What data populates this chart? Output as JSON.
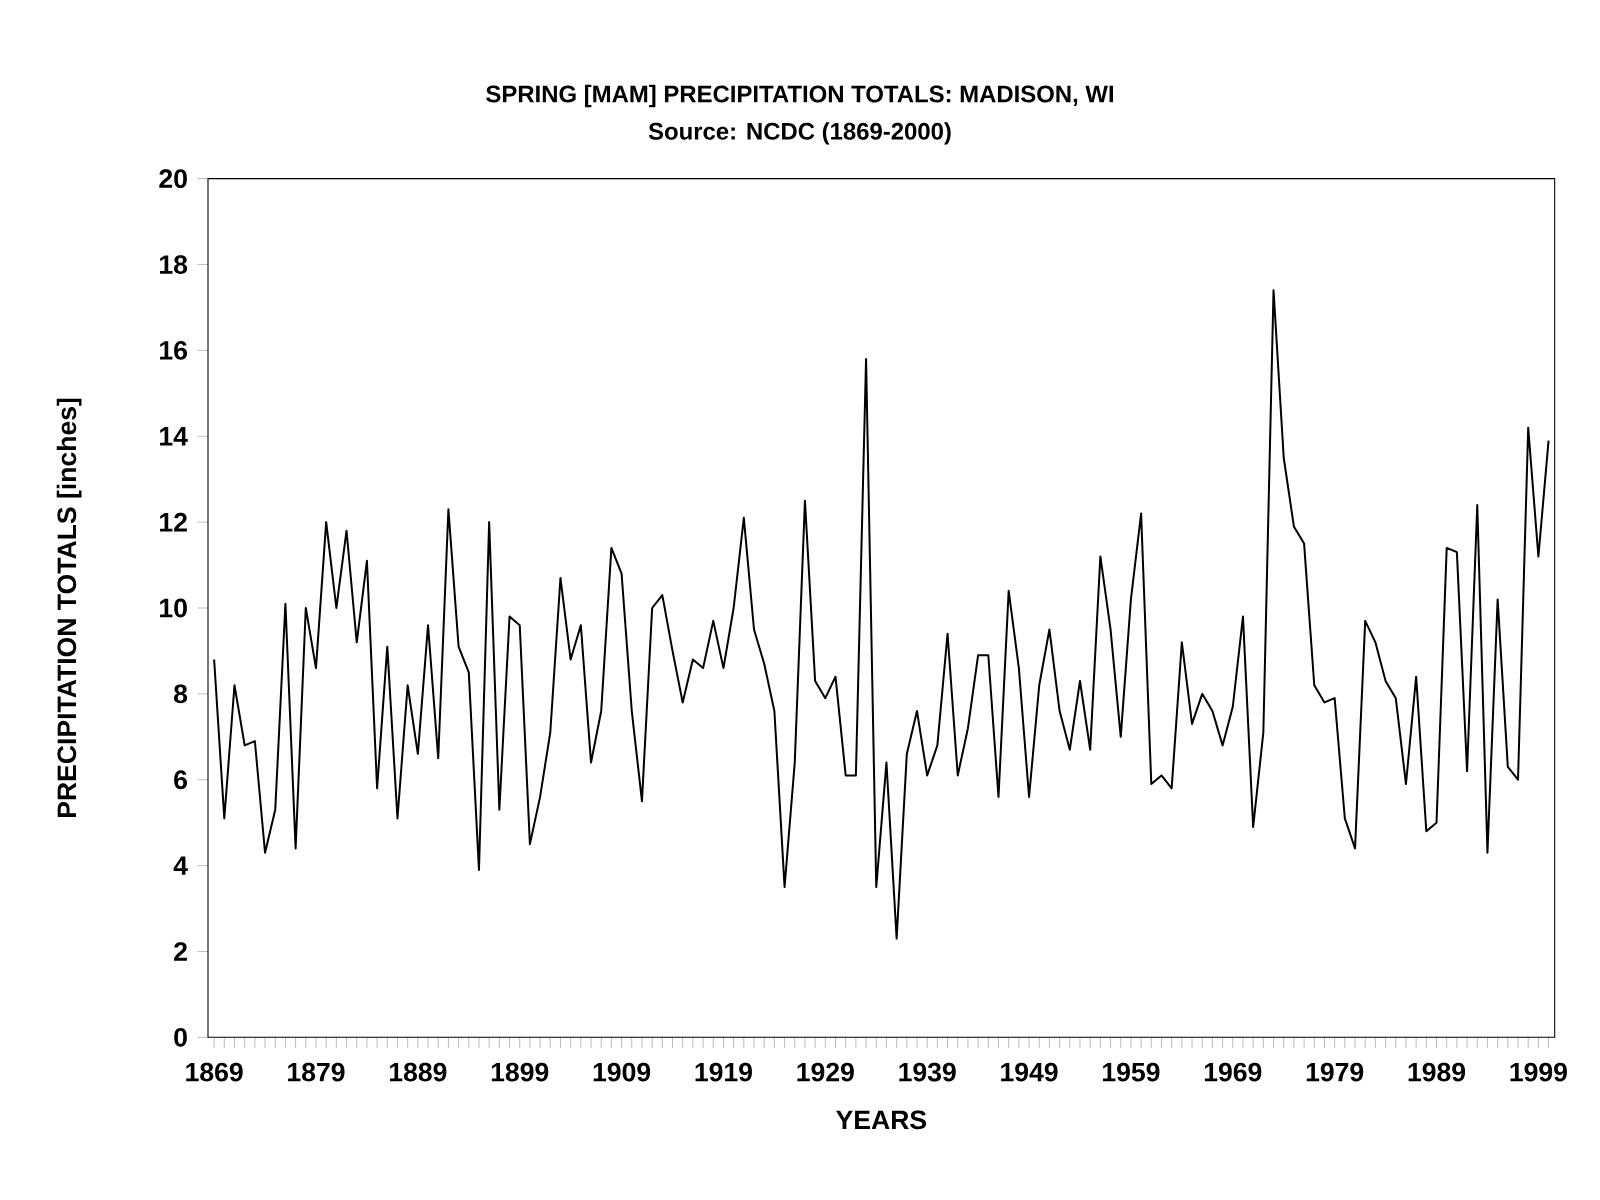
{
  "chart_data": {
    "type": "line",
    "title": "SPRING [MAM] PRECIPITATION TOTALS: MADISON, WI",
    "subtitle": "Source: NCDC (1869-2000)",
    "xlabel": "YEARS",
    "ylabel": "PRECIPITATION TOTALS [inches]",
    "x": [
      1869,
      1870,
      1871,
      1872,
      1873,
      1874,
      1875,
      1876,
      1877,
      1878,
      1879,
      1880,
      1881,
      1882,
      1883,
      1884,
      1885,
      1886,
      1887,
      1888,
      1889,
      1890,
      1891,
      1892,
      1893,
      1894,
      1895,
      1896,
      1897,
      1898,
      1899,
      1900,
      1901,
      1902,
      1903,
      1904,
      1905,
      1906,
      1907,
      1908,
      1909,
      1910,
      1911,
      1912,
      1913,
      1914,
      1915,
      1916,
      1917,
      1918,
      1919,
      1920,
      1921,
      1922,
      1923,
      1924,
      1925,
      1926,
      1927,
      1928,
      1929,
      1930,
      1931,
      1932,
      1933,
      1934,
      1935,
      1936,
      1937,
      1938,
      1939,
      1940,
      1941,
      1942,
      1943,
      1944,
      1945,
      1946,
      1947,
      1948,
      1949,
      1950,
      1951,
      1952,
      1953,
      1954,
      1955,
      1956,
      1957,
      1958,
      1959,
      1960,
      1961,
      1962,
      1963,
      1964,
      1965,
      1966,
      1967,
      1968,
      1969,
      1970,
      1971,
      1972,
      1973,
      1974,
      1975,
      1976,
      1977,
      1978,
      1979,
      1980,
      1981,
      1982,
      1983,
      1984,
      1985,
      1986,
      1987,
      1988,
      1989,
      1990,
      1991,
      1992,
      1993,
      1994,
      1995,
      1996,
      1997,
      1998,
      1999,
      2000
    ],
    "series": [
      {
        "color": "#000000",
        "values": [
          8.8,
          5.1,
          8.2,
          6.8,
          6.9,
          4.3,
          5.3,
          10.1,
          4.4,
          10.0,
          8.6,
          12.0,
          10.0,
          11.8,
          9.2,
          11.1,
          5.8,
          9.1,
          5.1,
          8.2,
          6.6,
          9.6,
          6.5,
          12.3,
          9.1,
          8.5,
          3.9,
          12.0,
          5.3,
          9.8,
          9.6,
          4.5,
          5.6,
          7.1,
          10.7,
          8.8,
          9.6,
          6.4,
          7.6,
          11.4,
          10.8,
          7.6,
          5.5,
          10.0,
          10.3,
          9.0,
          7.8,
          8.8,
          8.6,
          9.7,
          8.6,
          10.0,
          12.1,
          9.5,
          8.7,
          7.6,
          3.5,
          6.4,
          12.5,
          8.3,
          7.9,
          8.4,
          6.1,
          6.1,
          15.8,
          3.5,
          6.4,
          2.3,
          6.6,
          7.6,
          6.1,
          6.8,
          9.4,
          6.1,
          7.2,
          8.9,
          8.9,
          5.6,
          10.4,
          8.6,
          5.6,
          8.2,
          9.5,
          7.6,
          6.7,
          8.3,
          6.7,
          11.2,
          9.5,
          7.0,
          10.2,
          12.2,
          5.9,
          6.1,
          5.8,
          9.2,
          7.3,
          8.0,
          7.6,
          6.8,
          7.7,
          9.8,
          4.9,
          7.1,
          17.4,
          13.5,
          11.9,
          11.5,
          8.2,
          7.8,
          7.9,
          5.1,
          4.4,
          9.7,
          9.2,
          8.3,
          7.9,
          5.9,
          8.4,
          4.8,
          5.0,
          11.4,
          11.3,
          6.2,
          12.4,
          4.3,
          10.2,
          6.3,
          6.0,
          14.2,
          11.2,
          13.9
        ]
      }
    ],
    "xlim": [
      1868.4,
      2000.6
    ],
    "ylim": [
      0,
      20
    ],
    "xticks": [
      1869,
      {
        "value": 1870,
        "label": null
      },
      {
        "value": 1871,
        "label": null
      },
      {
        "value": 1872,
        "label": null
      },
      {
        "value": 1873,
        "label": null
      },
      {
        "value": 1874,
        "label": null
      },
      {
        "value": 1875,
        "label": null
      },
      {
        "value": 1876,
        "label": null
      },
      {
        "value": 1877,
        "label": null
      },
      {
        "value": 1878,
        "label": null
      },
      1879,
      {
        "value": 1880,
        "label": null
      },
      {
        "value": 1881,
        "label": null
      },
      {
        "value": 1882,
        "label": null
      },
      {
        "value": 1883,
        "label": null
      },
      {
        "value": 1884,
        "label": null
      },
      {
        "value": 1885,
        "label": null
      },
      {
        "value": 1886,
        "label": null
      },
      {
        "value": 1887,
        "label": null
      },
      {
        "value": 1888,
        "label": null
      },
      1889,
      {
        "value": 1890,
        "label": null
      },
      {
        "value": 1891,
        "label": null
      },
      {
        "value": 1892,
        "label": null
      },
      {
        "value": 1893,
        "label": null
      },
      {
        "value": 1894,
        "label": null
      },
      {
        "value": 1895,
        "label": null
      },
      {
        "value": 1896,
        "label": null
      },
      {
        "value": 1897,
        "label": null
      },
      {
        "value": 1898,
        "label": null
      },
      1899,
      {
        "value": 1900,
        "label": null
      },
      {
        "value": 1901,
        "label": null
      },
      {
        "value": 1902,
        "label": null
      },
      {
        "value": 1903,
        "label": null
      },
      {
        "value": 1904,
        "label": null
      },
      {
        "value": 1905,
        "label": null
      },
      {
        "value": 1906,
        "label": null
      },
      {
        "value": 1907,
        "label": null
      },
      {
        "value": 1908,
        "label": null
      },
      1909,
      {
        "value": 1910,
        "label": null
      },
      {
        "value": 1911,
        "label": null
      },
      {
        "value": 1912,
        "label": null
      },
      {
        "value": 1913,
        "label": null
      },
      {
        "value": 1914,
        "label": null
      },
      {
        "value": 1915,
        "label": null
      },
      {
        "value": 1916,
        "label": null
      },
      {
        "value": 1917,
        "label": null
      },
      {
        "value": 1918,
        "label": null
      },
      1919,
      {
        "value": 1920,
        "label": null
      },
      {
        "value": 1921,
        "label": null
      },
      {
        "value": 1922,
        "label": null
      },
      {
        "value": 1923,
        "label": null
      },
      {
        "value": 1924,
        "label": null
      },
      {
        "value": 1925,
        "label": null
      },
      {
        "value": 1926,
        "label": null
      },
      {
        "value": 1927,
        "label": null
      },
      {
        "value": 1928,
        "label": null
      },
      1929,
      {
        "value": 1930,
        "label": null
      },
      {
        "value": 1931,
        "label": null
      },
      {
        "value": 1932,
        "label": null
      },
      {
        "value": 1933,
        "label": null
      },
      {
        "value": 1934,
        "label": null
      },
      {
        "value": 1935,
        "label": null
      },
      {
        "value": 1936,
        "label": null
      },
      {
        "value": 1937,
        "label": null
      },
      {
        "value": 1938,
        "label": null
      },
      1939,
      {
        "value": 1940,
        "label": null
      },
      {
        "value": 1941,
        "label": null
      },
      {
        "value": 1942,
        "label": null
      },
      {
        "value": 1943,
        "label": null
      },
      {
        "value": 1944,
        "label": null
      },
      {
        "value": 1945,
        "label": null
      },
      {
        "value": 1946,
        "label": null
      },
      {
        "value": 1947,
        "label": null
      },
      {
        "value": 1948,
        "label": null
      },
      1949,
      {
        "value": 1950,
        "label": null
      },
      {
        "value": 1951,
        "label": null
      },
      {
        "value": 1952,
        "label": null
      },
      {
        "value": 1953,
        "label": null
      },
      {
        "value": 1954,
        "label": null
      },
      {
        "value": 1955,
        "label": null
      },
      {
        "value": 1956,
        "label": null
      },
      {
        "value": 1957,
        "label": null
      },
      {
        "value": 1958,
        "label": null
      },
      1959,
      {
        "value": 1960,
        "label": null
      },
      {
        "value": 1961,
        "label": null
      },
      {
        "value": 1962,
        "label": null
      },
      {
        "value": 1963,
        "label": null
      },
      {
        "value": 1964,
        "label": null
      },
      {
        "value": 1965,
        "label": null
      },
      {
        "value": 1966,
        "label": null
      },
      {
        "value": 1967,
        "label": null
      },
      {
        "value": 1968,
        "label": null
      },
      1969,
      {
        "value": 1970,
        "label": null
      },
      {
        "value": 1971,
        "label": null
      },
      {
        "value": 1972,
        "label": null
      },
      {
        "value": 1973,
        "label": null
      },
      {
        "value": 1974,
        "label": null
      },
      {
        "value": 1975,
        "label": null
      },
      {
        "value": 1976,
        "label": null
      },
      {
        "value": 1977,
        "label": null
      },
      {
        "value": 1978,
        "label": null
      },
      1979,
      {
        "value": 1980,
        "label": null
      },
      {
        "value": 1981,
        "label": null
      },
      {
        "value": 1982,
        "label": null
      },
      {
        "value": 1983,
        "label": null
      },
      {
        "value": 1984,
        "label": null
      },
      {
        "value": 1985,
        "label": null
      },
      {
        "value": 1986,
        "label": null
      },
      {
        "value": 1987,
        "label": null
      },
      {
        "value": 1988,
        "label": null
      },
      1989,
      {
        "value": 1990,
        "label": null
      },
      {
        "value": 1991,
        "label": null
      },
      {
        "value": 1992,
        "label": null
      },
      {
        "value": 1993,
        "label": null
      },
      {
        "value": 1994,
        "label": null
      },
      {
        "value": 1995,
        "label": null
      },
      {
        "value": 1996,
        "label": null
      },
      {
        "value": 1997,
        "label": null
      },
      {
        "value": 1998,
        "label": null
      },
      1999,
      {
        "value": 2000,
        "label": null
      }
    ],
    "yticks": [
      0,
      2,
      4,
      6,
      8,
      10,
      12,
      14,
      16,
      18,
      20
    ],
    "marker": "none",
    "line_style": "solid"
  }
}
